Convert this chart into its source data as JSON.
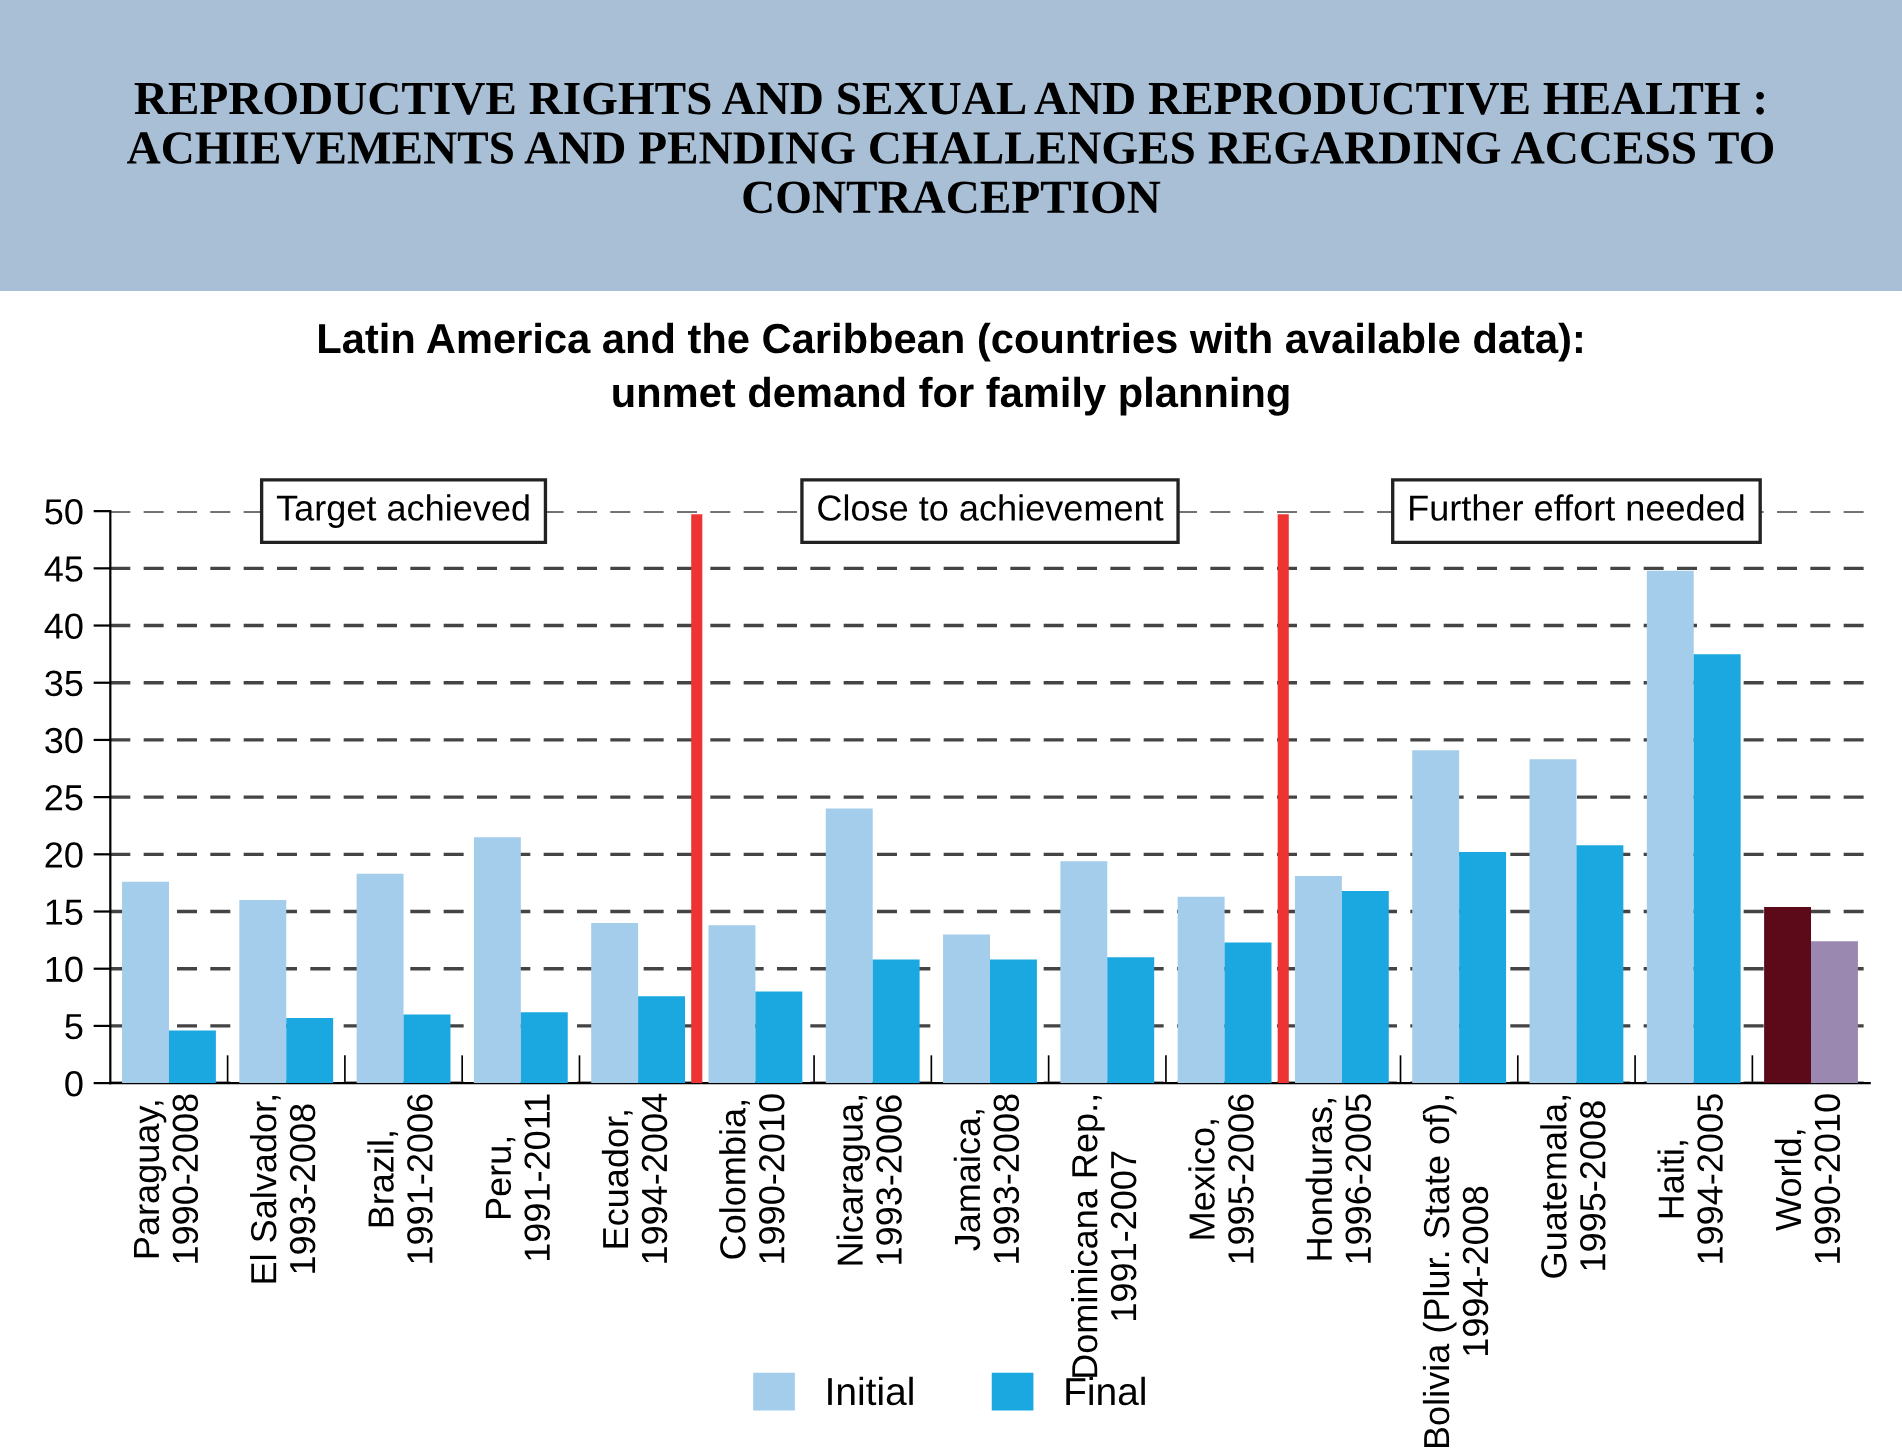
{
  "chart_data": {
    "type": "bar",
    "title": "REPRODUCTIVE RIGHTS AND SEXUAL AND REPRODUCTIVE HEALTH : ACHIEVEMENTS AND PENDING CHALLENGES REGARDING ACCESS TO CONTRACEPTION",
    "subtitle": "Latin America and the Caribbean (countries with available data):\nunmet demand for family planning",
    "categories": [
      "Paraguay,\n1990-2008",
      "El Salvador,\n1993-2008",
      "Brazil,\n1991-2006",
      "Peru,\n1991-2011",
      "Ecuador,\n1994-2004",
      "Colombia,\n1990-2010",
      "Nicaragua,\n1993-2006",
      "Jamaica,\n1993-2008",
      "Dominicana Rep.,\n1991-2007",
      "Mexico,\n1995-2006",
      "Honduras,\n1996-2005",
      "Bolivia (Plur. State of),\n1994-2008",
      "Guatemala,\n1995-2008",
      "Haiti,\n1994-2005",
      "World,\n1990-2010"
    ],
    "series": [
      {
        "name": "Initial",
        "color": "#a3cdea",
        "colors": [
          "#a3cdea",
          "#a3cdea",
          "#a3cdea",
          "#a3cdea",
          "#a3cdea",
          "#a3cdea",
          "#a3cdea",
          "#a3cdea",
          "#a3cdea",
          "#a3cdea",
          "#a3cdea",
          "#a3cdea",
          "#a3cdea",
          "#a3cdea",
          "#5c0a1a"
        ],
        "values": [
          17.6,
          16.0,
          18.3,
          21.5,
          14.0,
          13.8,
          24.0,
          13.0,
          19.4,
          16.3,
          18.1,
          29.1,
          28.3,
          44.8,
          15.4
        ]
      },
      {
        "name": "Final",
        "color": "#1ba8e0",
        "colors": [
          "#1ba8e0",
          "#1ba8e0",
          "#1ba8e0",
          "#1ba8e0",
          "#1ba8e0",
          "#1ba8e0",
          "#1ba8e0",
          "#1ba8e0",
          "#1ba8e0",
          "#1ba8e0",
          "#1ba8e0",
          "#1ba8e0",
          "#1ba8e0",
          "#1ba8e0",
          "#9b88b0"
        ],
        "values": [
          4.6,
          5.7,
          6.0,
          6.2,
          7.6,
          8.0,
          10.8,
          10.8,
          11.0,
          12.3,
          16.8,
          20.2,
          20.8,
          37.5,
          12.4
        ]
      }
    ],
    "ylim": [
      0,
      50
    ],
    "yticks": [
      0,
      5,
      10,
      15,
      20,
      25,
      30,
      35,
      40,
      45,
      50
    ],
    "grid": "y",
    "legend": "bottom",
    "annotations": [
      "Target achieved",
      "Close to achievement",
      "Further effort needed"
    ]
  }
}
